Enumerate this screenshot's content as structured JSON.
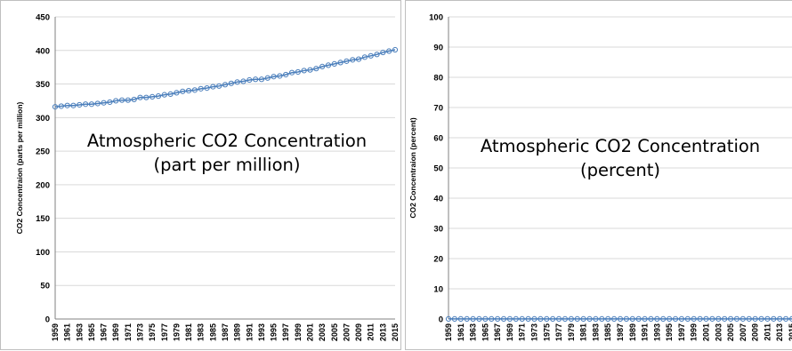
{
  "chart_data": [
    {
      "type": "line",
      "title_lines": [
        "Atmospheric CO2 Concentration",
        "(part per million)"
      ],
      "ylabel": "CO2 Concentraion (parts per million)",
      "ylim": [
        0,
        450
      ],
      "yticks": [
        "0",
        "50",
        "100",
        "150",
        "200",
        "250",
        "300",
        "350",
        "400",
        "450"
      ],
      "x_labels": [
        "1959",
        "1961",
        "1963",
        "1965",
        "1967",
        "1969",
        "1971",
        "1973",
        "1975",
        "1977",
        "1979",
        "1981",
        "1983",
        "1985",
        "1987",
        "1989",
        "1991",
        "1993",
        "1995",
        "1997",
        "1999",
        "2001",
        "2003",
        "2005",
        "2007",
        "2009",
        "2011",
        "2013",
        "2015"
      ],
      "grid": true,
      "x": [
        1959,
        1960,
        1961,
        1962,
        1963,
        1964,
        1965,
        1966,
        1967,
        1968,
        1969,
        1970,
        1971,
        1972,
        1973,
        1974,
        1975,
        1976,
        1977,
        1978,
        1979,
        1980,
        1981,
        1982,
        1983,
        1984,
        1985,
        1986,
        1987,
        1988,
        1989,
        1990,
        1991,
        1992,
        1993,
        1994,
        1995,
        1996,
        1997,
        1998,
        1999,
        2000,
        2001,
        2002,
        2003,
        2004,
        2005,
        2006,
        2007,
        2008,
        2009,
        2010,
        2011,
        2012,
        2013,
        2014,
        2015
      ],
      "series": [
        {
          "values": [
            316,
            317,
            318,
            318,
            319,
            320,
            320,
            321,
            322,
            323,
            325,
            326,
            326,
            327,
            330,
            330,
            331,
            332,
            334,
            335,
            337,
            339,
            340,
            341,
            343,
            344,
            346,
            347,
            349,
            351,
            353,
            354,
            356,
            357,
            357,
            359,
            361,
            362,
            364,
            367,
            368,
            370,
            371,
            373,
            376,
            378,
            380,
            382,
            384,
            386,
            387,
            390,
            392,
            394,
            397,
            399,
            401
          ],
          "color": "#4a7ebb"
        }
      ]
    },
    {
      "type": "line",
      "title_lines": [
        "Atmospheric CO2 Concentration",
        "(percent)"
      ],
      "ylabel": "CO2 Concentraion (percent)",
      "ylim": [
        0,
        100
      ],
      "yticks": [
        "0",
        "10",
        "20",
        "30",
        "40",
        "50",
        "60",
        "70",
        "80",
        "90",
        "100"
      ],
      "x_labels": [
        "1959",
        "1961",
        "1963",
        "1965",
        "1967",
        "1969",
        "1971",
        "1973",
        "1975",
        "1977",
        "1979",
        "1981",
        "1983",
        "1985",
        "1987",
        "1989",
        "1991",
        "1993",
        "1995",
        "1997",
        "1999",
        "2001",
        "2003",
        "2005",
        "2007",
        "2009",
        "2011",
        "2013",
        "2015"
      ],
      "grid": true,
      "x": [
        1959,
        1960,
        1961,
        1962,
        1963,
        1964,
        1965,
        1966,
        1967,
        1968,
        1969,
        1970,
        1971,
        1972,
        1973,
        1974,
        1975,
        1976,
        1977,
        1978,
        1979,
        1980,
        1981,
        1982,
        1983,
        1984,
        1985,
        1986,
        1987,
        1988,
        1989,
        1990,
        1991,
        1992,
        1993,
        1994,
        1995,
        1996,
        1997,
        1998,
        1999,
        2000,
        2001,
        2002,
        2003,
        2004,
        2005,
        2006,
        2007,
        2008,
        2009,
        2010,
        2011,
        2012,
        2013,
        2014,
        2015
      ],
      "series": [
        {
          "values": [
            0.0316,
            0.0317,
            0.0318,
            0.0318,
            0.0319,
            0.032,
            0.032,
            0.0321,
            0.0322,
            0.0323,
            0.0325,
            0.0326,
            0.0326,
            0.0327,
            0.033,
            0.033,
            0.0331,
            0.0332,
            0.0334,
            0.0335,
            0.0337,
            0.0339,
            0.034,
            0.0341,
            0.0343,
            0.0344,
            0.0346,
            0.0347,
            0.0349,
            0.0351,
            0.0353,
            0.0354,
            0.0356,
            0.0357,
            0.0357,
            0.0359,
            0.0361,
            0.0362,
            0.0364,
            0.0367,
            0.0368,
            0.037,
            0.0371,
            0.0373,
            0.0376,
            0.0378,
            0.038,
            0.0382,
            0.0384,
            0.0386,
            0.0387,
            0.039,
            0.0392,
            0.0394,
            0.0397,
            0.0399,
            0.0401
          ],
          "color": "#4a7ebb"
        }
      ]
    }
  ]
}
